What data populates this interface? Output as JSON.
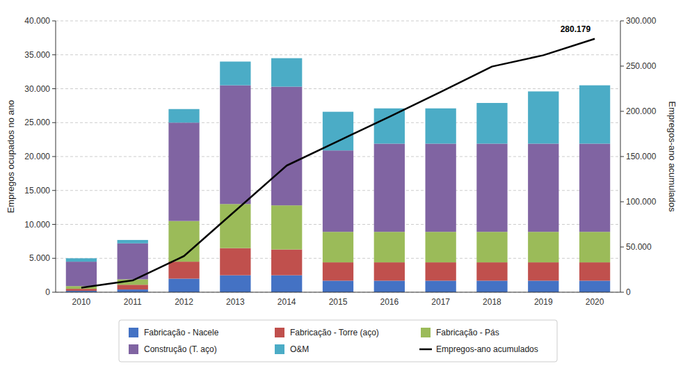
{
  "chart_data": {
    "type": "bar",
    "stacked": true,
    "grid": true,
    "legend": "bottom",
    "categories": [
      "2010",
      "2011",
      "2012",
      "2013",
      "2014",
      "2015",
      "2016",
      "2017",
      "2018",
      "2019",
      "2020"
    ],
    "ylabel": "Empregos ocupados no ano",
    "y2label": "Empregos-ano acumulados",
    "ylim": [
      0,
      40000
    ],
    "yticks": [
      0,
      {
        "value": 5000,
        "label": "5.000"
      },
      {
        "value": 10000,
        "label": "10.000"
      },
      {
        "value": 15000,
        "label": "15.000"
      },
      {
        "value": 20000,
        "label": "20.000"
      },
      {
        "value": 25000,
        "label": "25.000"
      },
      {
        "value": 30000,
        "label": "30.000"
      },
      {
        "value": 35000,
        "label": "35.000"
      },
      {
        "value": 40000,
        "label": "40.000"
      }
    ],
    "y2lim": [
      0,
      300000
    ],
    "y2ticks": [
      0,
      {
        "value": 50000,
        "label": "50.000"
      },
      {
        "value": 100000,
        "label": "100.000"
      },
      {
        "value": 150000,
        "label": "150.000"
      },
      {
        "value": 200000,
        "label": "200.000"
      },
      {
        "value": 250000,
        "label": "250.000"
      },
      {
        "value": 300000,
        "label": "300.000"
      }
    ],
    "series": [
      {
        "name": "Fabricação - Nacele",
        "color": "#4472C4",
        "values": [
          200,
          400,
          2000,
          2500,
          2500,
          1700,
          1700,
          1700,
          1700,
          1700,
          1700
        ]
      },
      {
        "name": "Fabricação - Torre (aço)",
        "color": "#C0504D",
        "values": [
          300,
          700,
          2500,
          4000,
          3800,
          2700,
          2700,
          2700,
          2700,
          2700,
          2700
        ]
      },
      {
        "name": "Fabricação - Pás",
        "color": "#9BBB59",
        "values": [
          400,
          800,
          6000,
          6500,
          6500,
          4500,
          4500,
          4500,
          4500,
          4500,
          4500
        ]
      },
      {
        "name": "Construção (T. aço)",
        "color": "#8064A2",
        "values": [
          3600,
          5300,
          14500,
          17500,
          17500,
          12000,
          13000,
          13000,
          13000,
          13000,
          13000
        ]
      },
      {
        "name": "O&M",
        "color": "#4BACC6",
        "values": [
          500,
          500,
          2000,
          3500,
          4200,
          5700,
          5200,
          5200,
          6000,
          7700,
          8600
        ]
      },
      {
        "name": "Empregos-ano acumulados",
        "type": "line",
        "axis": "y2",
        "color": "#000000",
        "values": [
          5000,
          13000,
          40000,
          90000,
          140000,
          167000,
          194000,
          221500,
          249500,
          262000,
          280179
        ]
      }
    ],
    "annotations": [
      {
        "text": "280.179",
        "x": "2020",
        "y": 280179,
        "axis": "y2"
      }
    ]
  }
}
